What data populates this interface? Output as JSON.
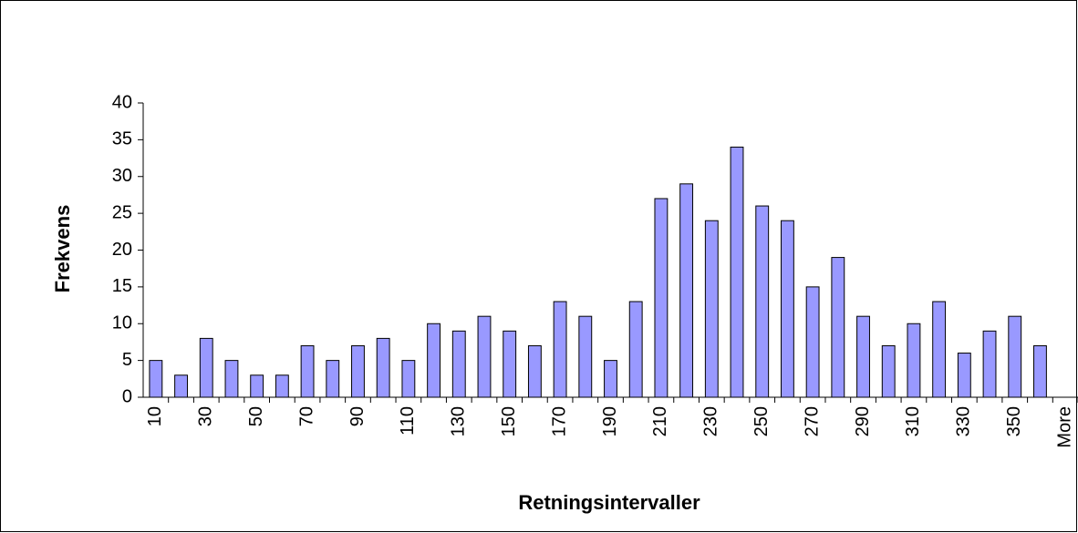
{
  "chart_data": {
    "type": "bar",
    "xlabel": "Retningsintervaller",
    "ylabel": "Frekvens",
    "categories": [
      "10",
      null,
      "30",
      null,
      "50",
      null,
      "70",
      null,
      "90",
      null,
      "110",
      null,
      "130",
      null,
      "150",
      null,
      "170",
      null,
      "190",
      null,
      "210",
      null,
      "230",
      null,
      "250",
      null,
      "270",
      null,
      "290",
      null,
      "310",
      null,
      "330",
      null,
      "350",
      null,
      "More"
    ],
    "values": [
      5,
      3,
      8,
      5,
      3,
      3,
      7,
      5,
      7,
      8,
      5,
      10,
      9,
      11,
      9,
      7,
      13,
      11,
      5,
      13,
      27,
      29,
      24,
      34,
      26,
      24,
      15,
      19,
      11,
      7,
      10,
      13,
      6,
      9,
      11,
      7,
      0
    ],
    "color": "#9999ff",
    "ylim": [
      0,
      40
    ],
    "yticks": [
      0,
      5,
      10,
      15,
      20,
      25,
      30,
      35,
      40
    ],
    "grid": false
  }
}
